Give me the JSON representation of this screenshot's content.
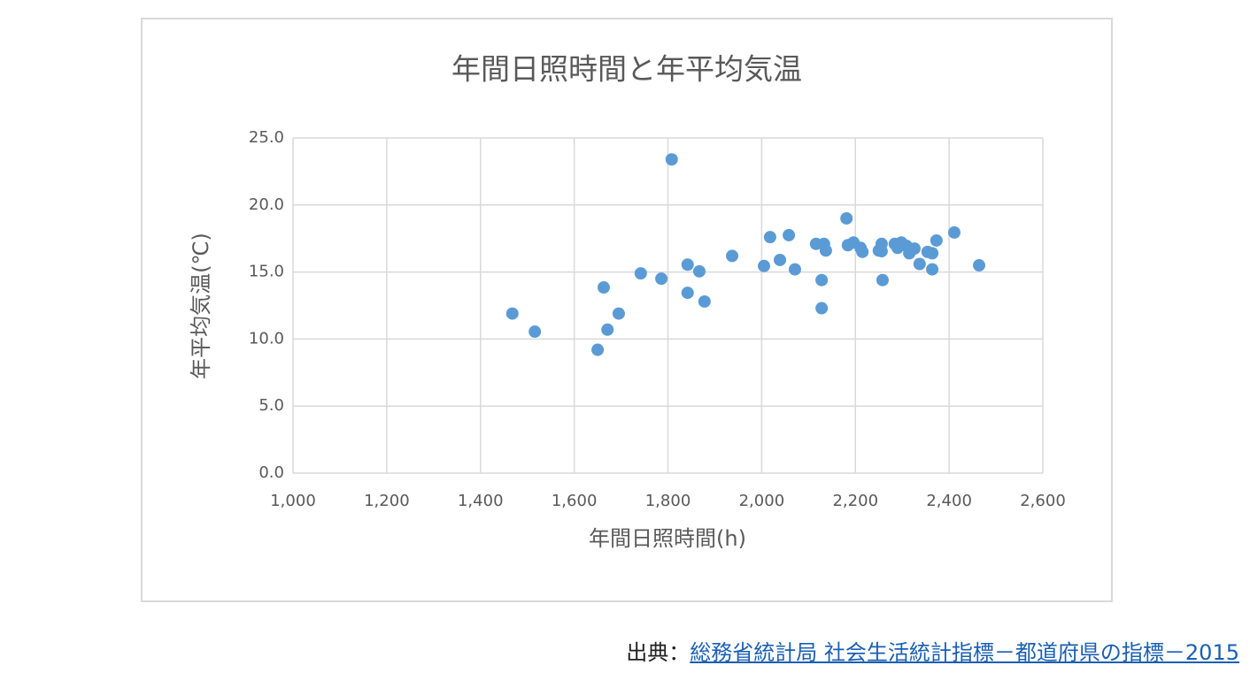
{
  "chart_data": {
    "type": "scatter",
    "title": "年間日照時間と年平均気温",
    "x_label": "年間日照時間(h)",
    "y_label": "年平均気温(℃)",
    "color": "#5b9bd5",
    "grid": true,
    "xlim": [
      1000,
      2600
    ],
    "xticks": [
      {
        "value": 1000,
        "label": "1,000"
      },
      {
        "value": 1200,
        "label": "1,200"
      },
      {
        "value": 1400,
        "label": "1,400"
      },
      {
        "value": 1600,
        "label": "1,600"
      },
      {
        "value": 1800,
        "label": "1,800"
      },
      {
        "value": 2000,
        "label": "2,000"
      },
      {
        "value": 2200,
        "label": "2,200"
      },
      {
        "value": 2400,
        "label": "2,400"
      },
      {
        "value": 2600,
        "label": "2,600"
      }
    ],
    "ylim": [
      0,
      25
    ],
    "yticks": [
      {
        "value": 0,
        "label": "0.0"
      },
      {
        "value": 5,
        "label": "5.0"
      },
      {
        "value": 10,
        "label": "10.0"
      },
      {
        "value": 15,
        "label": "15.0"
      },
      {
        "value": 20,
        "label": "20.0"
      },
      {
        "value": 25,
        "label": "25.0"
      }
    ],
    "x": [
      1468,
      1516,
      1650,
      1663,
      1671,
      1695,
      1742,
      1786,
      1808,
      1842,
      1842,
      1867,
      1878,
      1937,
      2005,
      2018,
      2039,
      2058,
      2071,
      2116,
      2128,
      2128,
      2133,
      2137,
      2181,
      2184,
      2196,
      2211,
      2215,
      2250,
      2256,
      2256,
      2258,
      2284,
      2290,
      2298,
      2309,
      2315,
      2326,
      2337,
      2354,
      2364,
      2364,
      2373,
      2411,
      2464
    ],
    "values": [
      11.9,
      10.55,
      9.2,
      13.85,
      10.7,
      11.9,
      14.9,
      14.5,
      23.4,
      15.55,
      13.45,
      15.05,
      12.8,
      16.2,
      15.45,
      17.6,
      15.9,
      17.75,
      15.2,
      17.1,
      14.4,
      12.3,
      17.1,
      16.6,
      19.0,
      17.0,
      17.2,
      16.8,
      16.5,
      16.6,
      17.1,
      16.55,
      14.4,
      17.1,
      16.8,
      17.2,
      16.95,
      16.4,
      16.75,
      15.6,
      16.5,
      16.4,
      15.2,
      17.35,
      17.95,
      15.5
    ]
  },
  "source": {
    "prefix": "出典：",
    "link": "総務省統計局 社会生活統計指標－都道府県の指標－2015"
  }
}
